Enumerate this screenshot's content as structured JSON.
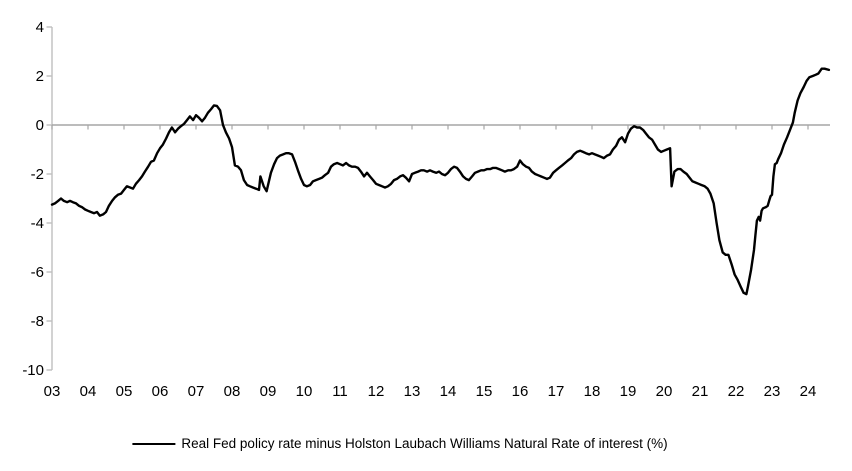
{
  "chart_data": {
    "type": "line",
    "title": "",
    "legend": "Real Fed policy rate minus Holston Laubach Williams Natural Rate of interest (%)",
    "legend_position": "bottom-center",
    "xlabel": "",
    "ylabel": "",
    "xlim": [
      2003,
      2024.7
    ],
    "ylim": [
      -10,
      4
    ],
    "grid": "horizontal zero line only",
    "yticks": [
      4,
      2,
      0,
      -2,
      -4,
      -6,
      -8,
      -10
    ],
    "ytick_labels": [
      "4",
      "2",
      "0",
      "-2",
      "-4",
      "-6",
      "-8",
      "-10"
    ],
    "xtick_years": [
      2003,
      2004,
      2005,
      2006,
      2007,
      2008,
      2009,
      2010,
      2011,
      2012,
      2013,
      2014,
      2015,
      2016,
      2017,
      2018,
      2019,
      2020,
      2021,
      2022,
      2023,
      2024
    ],
    "xtick_labels": [
      "03",
      "04",
      "05",
      "06",
      "07",
      "08",
      "09",
      "10",
      "11",
      "12",
      "13",
      "14",
      "15",
      "16",
      "17",
      "18",
      "19",
      "20",
      "21",
      "22",
      "23",
      "24"
    ],
    "colors": {
      "series_line": "#000000",
      "zero_line": "#a6a6a6",
      "y_axis": "#bfbfbf",
      "tick_text": "#000000",
      "background": "#ffffff"
    },
    "series": [
      {
        "name": "Real Fed policy rate minus Holston Laubach Williams Natural Rate of interest (%)",
        "points": [
          [
            2003.0,
            -3.25
          ],
          [
            2003.08,
            -3.2
          ],
          [
            2003.17,
            -3.1
          ],
          [
            2003.25,
            -3.0
          ],
          [
            2003.33,
            -3.1
          ],
          [
            2003.42,
            -3.15
          ],
          [
            2003.5,
            -3.1
          ],
          [
            2003.58,
            -3.15
          ],
          [
            2003.67,
            -3.2
          ],
          [
            2003.75,
            -3.3
          ],
          [
            2003.83,
            -3.35
          ],
          [
            2003.92,
            -3.45
          ],
          [
            2004.0,
            -3.5
          ],
          [
            2004.08,
            -3.55
          ],
          [
            2004.17,
            -3.6
          ],
          [
            2004.25,
            -3.55
          ],
          [
            2004.33,
            -3.7
          ],
          [
            2004.42,
            -3.65
          ],
          [
            2004.5,
            -3.55
          ],
          [
            2004.58,
            -3.3
          ],
          [
            2004.67,
            -3.1
          ],
          [
            2004.75,
            -2.95
          ],
          [
            2004.83,
            -2.85
          ],
          [
            2004.92,
            -2.8
          ],
          [
            2005.0,
            -2.65
          ],
          [
            2005.08,
            -2.5
          ],
          [
            2005.17,
            -2.55
          ],
          [
            2005.25,
            -2.6
          ],
          [
            2005.33,
            -2.4
          ],
          [
            2005.42,
            -2.25
          ],
          [
            2005.5,
            -2.1
          ],
          [
            2005.58,
            -1.9
          ],
          [
            2005.67,
            -1.7
          ],
          [
            2005.75,
            -1.5
          ],
          [
            2005.83,
            -1.45
          ],
          [
            2005.92,
            -1.15
          ],
          [
            2006.0,
            -0.95
          ],
          [
            2006.08,
            -0.8
          ],
          [
            2006.17,
            -0.55
          ],
          [
            2006.25,
            -0.3
          ],
          [
            2006.33,
            -0.1
          ],
          [
            2006.42,
            -0.3
          ],
          [
            2006.5,
            -0.15
          ],
          [
            2006.58,
            -0.05
          ],
          [
            2006.67,
            0.05
          ],
          [
            2006.75,
            0.2
          ],
          [
            2006.83,
            0.35
          ],
          [
            2006.92,
            0.2
          ],
          [
            2007.0,
            0.4
          ],
          [
            2007.08,
            0.3
          ],
          [
            2007.17,
            0.15
          ],
          [
            2007.25,
            0.3
          ],
          [
            2007.33,
            0.5
          ],
          [
            2007.42,
            0.65
          ],
          [
            2007.5,
            0.8
          ],
          [
            2007.58,
            0.78
          ],
          [
            2007.67,
            0.6
          ],
          [
            2007.75,
            0.0
          ],
          [
            2007.83,
            -0.3
          ],
          [
            2007.92,
            -0.55
          ],
          [
            2008.0,
            -0.9
          ],
          [
            2008.08,
            -1.65
          ],
          [
            2008.17,
            -1.7
          ],
          [
            2008.25,
            -1.85
          ],
          [
            2008.33,
            -2.25
          ],
          [
            2008.42,
            -2.45
          ],
          [
            2008.5,
            -2.5
          ],
          [
            2008.58,
            -2.55
          ],
          [
            2008.67,
            -2.6
          ],
          [
            2008.75,
            -2.65
          ],
          [
            2008.79,
            -2.1
          ],
          [
            2008.88,
            -2.5
          ],
          [
            2008.96,
            -2.7
          ],
          [
            2009.08,
            -1.95
          ],
          [
            2009.17,
            -1.6
          ],
          [
            2009.25,
            -1.35
          ],
          [
            2009.33,
            -1.25
          ],
          [
            2009.42,
            -1.2
          ],
          [
            2009.5,
            -1.15
          ],
          [
            2009.58,
            -1.15
          ],
          [
            2009.67,
            -1.2
          ],
          [
            2009.75,
            -1.5
          ],
          [
            2009.83,
            -1.85
          ],
          [
            2009.92,
            -2.2
          ],
          [
            2010.0,
            -2.45
          ],
          [
            2010.08,
            -2.5
          ],
          [
            2010.17,
            -2.45
          ],
          [
            2010.25,
            -2.3
          ],
          [
            2010.33,
            -2.25
          ],
          [
            2010.42,
            -2.2
          ],
          [
            2010.5,
            -2.15
          ],
          [
            2010.58,
            -2.05
          ],
          [
            2010.67,
            -1.95
          ],
          [
            2010.75,
            -1.7
          ],
          [
            2010.83,
            -1.6
          ],
          [
            2010.92,
            -1.55
          ],
          [
            2011.0,
            -1.6
          ],
          [
            2011.08,
            -1.65
          ],
          [
            2011.17,
            -1.55
          ],
          [
            2011.25,
            -1.65
          ],
          [
            2011.33,
            -1.7
          ],
          [
            2011.42,
            -1.7
          ],
          [
            2011.5,
            -1.75
          ],
          [
            2011.58,
            -1.9
          ],
          [
            2011.67,
            -2.1
          ],
          [
            2011.75,
            -1.95
          ],
          [
            2011.83,
            -2.1
          ],
          [
            2011.92,
            -2.25
          ],
          [
            2012.0,
            -2.4
          ],
          [
            2012.08,
            -2.45
          ],
          [
            2012.17,
            -2.5
          ],
          [
            2012.25,
            -2.55
          ],
          [
            2012.33,
            -2.5
          ],
          [
            2012.42,
            -2.4
          ],
          [
            2012.5,
            -2.25
          ],
          [
            2012.58,
            -2.2
          ],
          [
            2012.67,
            -2.1
          ],
          [
            2012.75,
            -2.05
          ],
          [
            2012.83,
            -2.15
          ],
          [
            2012.92,
            -2.3
          ],
          [
            2013.0,
            -2.0
          ],
          [
            2013.08,
            -1.95
          ],
          [
            2013.17,
            -1.9
          ],
          [
            2013.25,
            -1.85
          ],
          [
            2013.33,
            -1.85
          ],
          [
            2013.42,
            -1.9
          ],
          [
            2013.5,
            -1.85
          ],
          [
            2013.58,
            -1.9
          ],
          [
            2013.67,
            -1.95
          ],
          [
            2013.75,
            -1.9
          ],
          [
            2013.83,
            -2.0
          ],
          [
            2013.92,
            -2.05
          ],
          [
            2014.0,
            -1.95
          ],
          [
            2014.08,
            -1.8
          ],
          [
            2014.17,
            -1.7
          ],
          [
            2014.25,
            -1.75
          ],
          [
            2014.33,
            -1.9
          ],
          [
            2014.42,
            -2.1
          ],
          [
            2014.5,
            -2.2
          ],
          [
            2014.58,
            -2.25
          ],
          [
            2014.67,
            -2.1
          ],
          [
            2014.75,
            -1.95
          ],
          [
            2014.83,
            -1.9
          ],
          [
            2014.92,
            -1.85
          ],
          [
            2015.0,
            -1.85
          ],
          [
            2015.08,
            -1.8
          ],
          [
            2015.17,
            -1.8
          ],
          [
            2015.25,
            -1.75
          ],
          [
            2015.33,
            -1.75
          ],
          [
            2015.42,
            -1.8
          ],
          [
            2015.5,
            -1.85
          ],
          [
            2015.58,
            -1.9
          ],
          [
            2015.67,
            -1.85
          ],
          [
            2015.75,
            -1.85
          ],
          [
            2015.83,
            -1.8
          ],
          [
            2015.92,
            -1.7
          ],
          [
            2016.0,
            -1.45
          ],
          [
            2016.08,
            -1.6
          ],
          [
            2016.17,
            -1.7
          ],
          [
            2016.25,
            -1.75
          ],
          [
            2016.33,
            -1.9
          ],
          [
            2016.42,
            -2.0
          ],
          [
            2016.5,
            -2.05
          ],
          [
            2016.58,
            -2.1
          ],
          [
            2016.67,
            -2.15
          ],
          [
            2016.75,
            -2.2
          ],
          [
            2016.83,
            -2.15
          ],
          [
            2016.92,
            -1.95
          ],
          [
            2017.0,
            -1.85
          ],
          [
            2017.08,
            -1.75
          ],
          [
            2017.17,
            -1.65
          ],
          [
            2017.25,
            -1.55
          ],
          [
            2017.33,
            -1.45
          ],
          [
            2017.42,
            -1.35
          ],
          [
            2017.5,
            -1.2
          ],
          [
            2017.58,
            -1.1
          ],
          [
            2017.67,
            -1.05
          ],
          [
            2017.75,
            -1.1
          ],
          [
            2017.83,
            -1.15
          ],
          [
            2017.92,
            -1.2
          ],
          [
            2018.0,
            -1.15
          ],
          [
            2018.08,
            -1.2
          ],
          [
            2018.17,
            -1.25
          ],
          [
            2018.25,
            -1.3
          ],
          [
            2018.33,
            -1.35
          ],
          [
            2018.42,
            -1.25
          ],
          [
            2018.5,
            -1.2
          ],
          [
            2018.58,
            -1.0
          ],
          [
            2018.67,
            -0.85
          ],
          [
            2018.75,
            -0.6
          ],
          [
            2018.83,
            -0.5
          ],
          [
            2018.92,
            -0.7
          ],
          [
            2019.0,
            -0.35
          ],
          [
            2019.08,
            -0.15
          ],
          [
            2019.17,
            -0.05
          ],
          [
            2019.25,
            -0.1
          ],
          [
            2019.33,
            -0.1
          ],
          [
            2019.42,
            -0.2
          ],
          [
            2019.5,
            -0.35
          ],
          [
            2019.58,
            -0.5
          ],
          [
            2019.67,
            -0.6
          ],
          [
            2019.75,
            -0.8
          ],
          [
            2019.83,
            -1.0
          ],
          [
            2019.92,
            -1.1
          ],
          [
            2020.0,
            -1.05
          ],
          [
            2020.08,
            -1.0
          ],
          [
            2020.17,
            -0.95
          ],
          [
            2020.21,
            -2.5
          ],
          [
            2020.29,
            -1.9
          ],
          [
            2020.38,
            -1.8
          ],
          [
            2020.46,
            -1.8
          ],
          [
            2020.54,
            -1.9
          ],
          [
            2020.63,
            -2.0
          ],
          [
            2020.71,
            -2.15
          ],
          [
            2020.79,
            -2.3
          ],
          [
            2020.88,
            -2.35
          ],
          [
            2020.96,
            -2.4
          ],
          [
            2021.04,
            -2.45
          ],
          [
            2021.13,
            -2.5
          ],
          [
            2021.21,
            -2.6
          ],
          [
            2021.29,
            -2.8
          ],
          [
            2021.38,
            -3.2
          ],
          [
            2021.46,
            -4.0
          ],
          [
            2021.54,
            -4.7
          ],
          [
            2021.63,
            -5.2
          ],
          [
            2021.71,
            -5.3
          ],
          [
            2021.79,
            -5.3
          ],
          [
            2021.88,
            -5.7
          ],
          [
            2021.96,
            -6.1
          ],
          [
            2022.04,
            -6.3
          ],
          [
            2022.13,
            -6.6
          ],
          [
            2022.21,
            -6.85
          ],
          [
            2022.29,
            -6.9
          ],
          [
            2022.33,
            -6.6
          ],
          [
            2022.42,
            -5.9
          ],
          [
            2022.5,
            -5.1
          ],
          [
            2022.54,
            -4.5
          ],
          [
            2022.58,
            -3.9
          ],
          [
            2022.63,
            -3.75
          ],
          [
            2022.67,
            -3.9
          ],
          [
            2022.71,
            -3.5
          ],
          [
            2022.75,
            -3.4
          ],
          [
            2022.83,
            -3.35
          ],
          [
            2022.88,
            -3.3
          ],
          [
            2022.92,
            -3.1
          ],
          [
            2022.96,
            -2.9
          ],
          [
            2023.0,
            -2.85
          ],
          [
            2023.04,
            -2.1
          ],
          [
            2023.08,
            -1.6
          ],
          [
            2023.13,
            -1.55
          ],
          [
            2023.17,
            -1.4
          ],
          [
            2023.25,
            -1.15
          ],
          [
            2023.33,
            -0.8
          ],
          [
            2023.42,
            -0.5
          ],
          [
            2023.5,
            -0.2
          ],
          [
            2023.58,
            0.1
          ],
          [
            2023.63,
            0.5
          ],
          [
            2023.71,
            1.0
          ],
          [
            2023.79,
            1.3
          ],
          [
            2023.88,
            1.55
          ],
          [
            2023.96,
            1.8
          ],
          [
            2024.04,
            1.95
          ],
          [
            2024.13,
            2.0
          ],
          [
            2024.21,
            2.05
          ],
          [
            2024.29,
            2.1
          ],
          [
            2024.38,
            2.3
          ],
          [
            2024.46,
            2.3
          ],
          [
            2024.58,
            2.25
          ]
        ]
      }
    ]
  }
}
